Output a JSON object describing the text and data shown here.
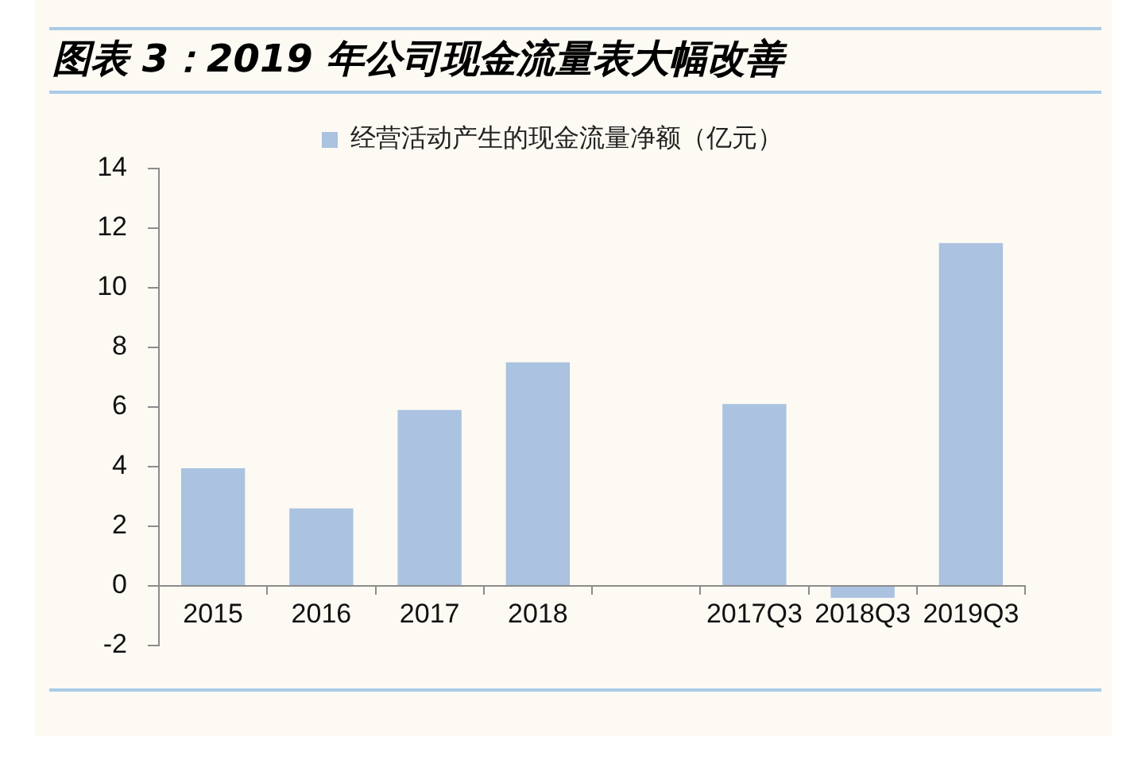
{
  "chart_data": {
    "type": "bar",
    "title": "图表 3：2019 年公司现金流量表大幅改善",
    "categories": [
      "2015",
      "2016",
      "2017",
      "2018",
      null,
      "2017Q3",
      "2018Q3",
      "2019Q3"
    ],
    "series": [
      {
        "name": "经营活动产生的现金流量净额（亿元）",
        "color": "#abc2e0",
        "values": [
          3.95,
          2.6,
          5.9,
          7.5,
          null,
          6.1,
          -0.4,
          11.5
        ]
      }
    ],
    "ylim": [
      -2,
      14
    ],
    "yticks": [
      -2,
      0,
      2,
      4,
      6,
      8,
      10,
      12,
      14
    ],
    "legend": "top"
  }
}
